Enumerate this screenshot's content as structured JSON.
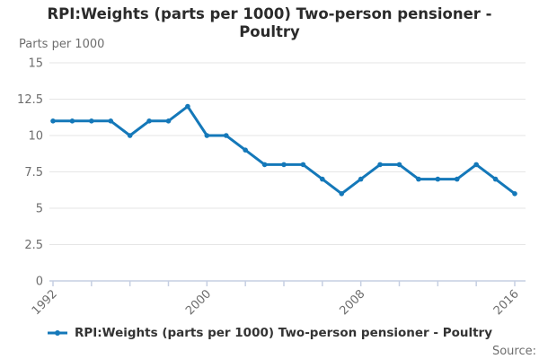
{
  "title": {
    "text": "RPI:Weights (parts per 1000) Two-person pensioner - Poultry"
  },
  "y_axis": {
    "title": "Parts per 1000"
  },
  "legend": {
    "label": "RPI:Weights (parts per 1000) Two-person pensioner - Poultry"
  },
  "source": {
    "label": "Source:"
  },
  "colors": {
    "line": "#1478b9",
    "marker": "#1478b9",
    "gridline": "#e6e6e6",
    "axis_line": "#c6cfe2",
    "tick_label": "#6e6e6e",
    "title_text": "#2b2b2b"
  },
  "chart_data": {
    "type": "line",
    "title": "RPI:Weights (parts per 1000) Two-person pensioner - Poultry",
    "xlabel": "",
    "ylabel": "Parts per 1000",
    "x": [
      1992,
      1993,
      1994,
      1995,
      1996,
      1997,
      1998,
      1999,
      2000,
      2001,
      2002,
      2003,
      2004,
      2005,
      2006,
      2007,
      2008,
      2009,
      2010,
      2011,
      2012,
      2013,
      2014,
      2015,
      2016
    ],
    "series": [
      {
        "name": "RPI:Weights (parts per 1000) Two-person pensioner - Poultry",
        "values": [
          11,
          11,
          11,
          11,
          10,
          11,
          11,
          12,
          10,
          10,
          9,
          8,
          8,
          8,
          7,
          6,
          7,
          8,
          8,
          7,
          7,
          7,
          8,
          7,
          6
        ]
      }
    ],
    "ylim": [
      0,
      15
    ],
    "y_ticks": [
      0,
      2.5,
      5,
      7.5,
      10,
      12.5,
      15
    ],
    "x_tick_interval_years": 2,
    "x_labels_shown": [
      "1992",
      "2000",
      "2008",
      "2016"
    ],
    "grid": true,
    "legend_position": "bottom"
  }
}
